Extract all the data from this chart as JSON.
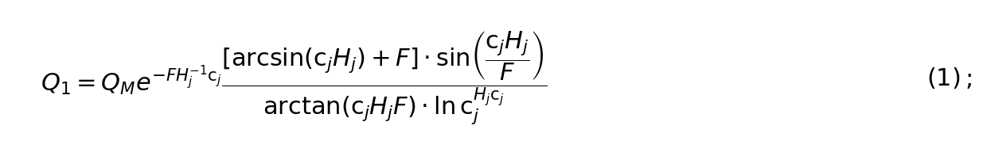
{
  "formula": "Q_1 = Q_M e^{-FH_j^{-1}c_j} \\frac{[\\arcsin(c_j H_j) + F] \\cdot \\sin\\!\\left(\\dfrac{c_j H_j}{F}\\right)}{\\arctan(c_j H_j F) \\cdot \\ln c_j^{H_j c_j}}",
  "label": "(1)\\,;",
  "fontsize": 22,
  "background_color": "#ffffff",
  "text_color": "#000000",
  "fig_width": 12.4,
  "fig_height": 1.97,
  "dpi": 100
}
